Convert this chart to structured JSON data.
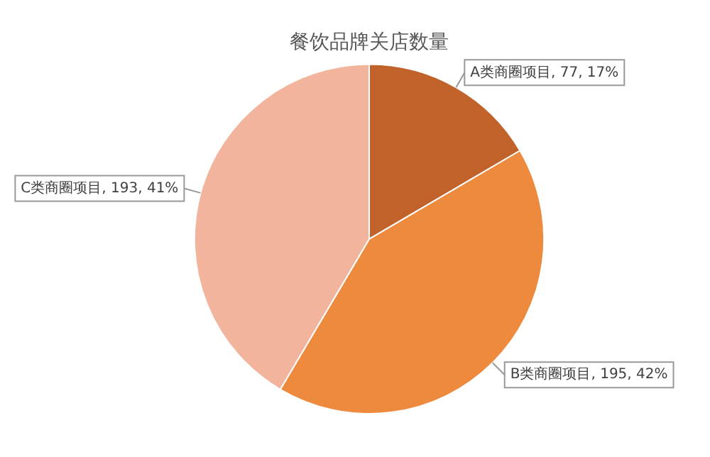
{
  "chart_data": {
    "type": "pie",
    "title": "餐饮品牌关店数量",
    "categories": [
      "A类商圈项目",
      "B类商圈项目",
      "C类商圈项目"
    ],
    "values": [
      77,
      195,
      193
    ],
    "value_labels": [
      "77, 17%",
      "195, 42%",
      "193, 41%"
    ],
    "colors": [
      "#c0622a",
      "#ee8a3e",
      "#f2b49c"
    ],
    "legend": false
  }
}
